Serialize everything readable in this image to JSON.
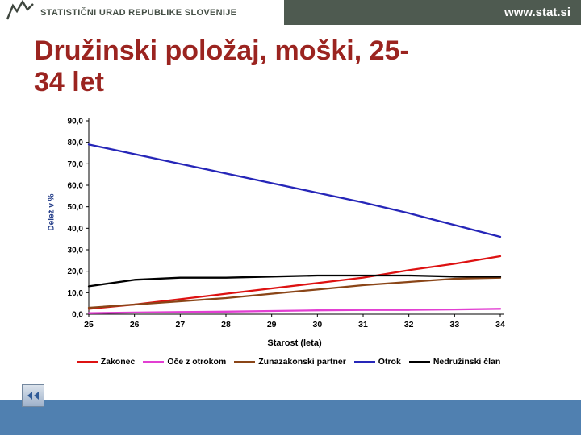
{
  "header": {
    "agency": "STATISTIČNI URAD REPUBLIKE SLOVENIJE",
    "website": "www.stat.si"
  },
  "title": "Družinski položaj, moški, 25-34 let",
  "chart_data": {
    "type": "line",
    "x": [
      25,
      26,
      27,
      28,
      29,
      30,
      31,
      32,
      33,
      34
    ],
    "xlabel": "Starost (leta)",
    "ylabel": "Delež v %",
    "ylim": [
      0,
      90
    ],
    "ytick_step": 10,
    "ytick_labels": [
      "0,0",
      "10,0",
      "20,0",
      "30,0",
      "40,0",
      "50,0",
      "60,0",
      "70,0",
      "80,0",
      "90,0"
    ],
    "grid": false,
    "legend_position": "bottom",
    "series": [
      {
        "name": "Zakonec",
        "color": "#dd1111",
        "values": [
          2.5,
          4.5,
          7,
          9.5,
          12,
          14.5,
          17,
          20.5,
          23.5,
          27
        ]
      },
      {
        "name": "Oče z otrokom",
        "color": "#e23fd2",
        "values": [
          0.5,
          0.8,
          1,
          1.2,
          1.5,
          1.8,
          2,
          2,
          2.2,
          2.5
        ]
      },
      {
        "name": "Zunazakonski partner",
        "color": "#8a4517",
        "values": [
          3,
          4.5,
          6,
          7.5,
          9.5,
          11.5,
          13.5,
          15,
          16.5,
          17
        ]
      },
      {
        "name": "Otrok",
        "color": "#2626b8",
        "values": [
          79,
          74.5,
          70,
          65.5,
          61,
          56.5,
          52,
          47,
          41.5,
          36
        ]
      },
      {
        "name": "Nedružinski član",
        "color": "#000000",
        "values": [
          13,
          16,
          17,
          17,
          17.5,
          18,
          18,
          18,
          17.5,
          17.5
        ]
      }
    ]
  },
  "icons": {
    "logo": "line-chart-logo",
    "nav_back": "double-left-arrow"
  }
}
